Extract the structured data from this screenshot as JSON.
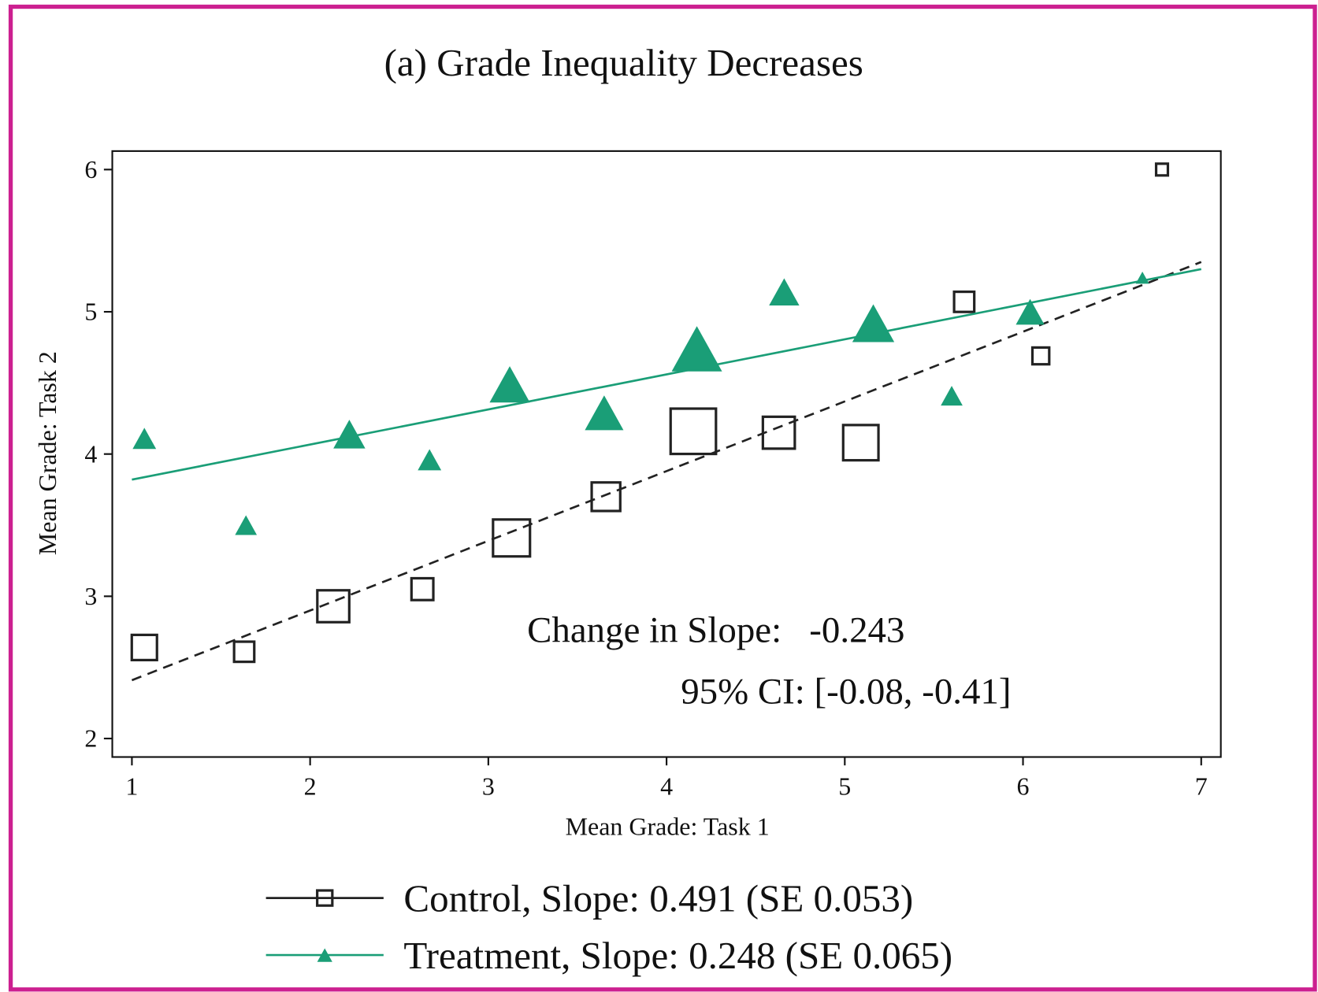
{
  "chart_data": {
    "type": "scatter",
    "title": "(a) Grade Inequality Decreases",
    "xlabel": "Mean Grade: Task 1",
    "ylabel": "Mean Grade: Task 2",
    "xlim": [
      0.89,
      7.11
    ],
    "ylim": [
      1.87,
      6.13
    ],
    "xticks": [
      1,
      2,
      3,
      4,
      5,
      6,
      7
    ],
    "yticks": [
      2,
      3,
      4,
      5,
      6
    ],
    "annotations": [
      "Change in Slope:   -0.243",
      "95% CI: [-0.08, -0.41]"
    ],
    "series": [
      {
        "name": "Control, Slope: 0.491 (SE 0.053)",
        "color": "#222222",
        "marker": "square",
        "x": [
          1.07,
          1.63,
          2.13,
          2.63,
          3.13,
          3.66,
          4.15,
          4.63,
          5.09,
          5.67,
          6.1,
          6.78
        ],
        "values": [
          2.64,
          2.61,
          2.93,
          3.05,
          3.41,
          3.7,
          4.16,
          4.15,
          4.08,
          5.07,
          4.69,
          6.0
        ],
        "sizes": [
          30,
          24,
          38,
          26,
          44,
          34,
          54,
          38,
          42,
          24,
          20,
          14
        ],
        "fit": {
          "x": [
            1,
            7
          ],
          "y": [
            2.41,
            5.35
          ]
        }
      },
      {
        "name": "Treatment, Slope: 0.248 (SE 0.065)",
        "color": "#1a9e77",
        "marker": "triangle",
        "x": [
          1.07,
          1.64,
          2.22,
          2.67,
          3.12,
          3.65,
          4.17,
          4.66,
          5.16,
          5.6,
          6.04,
          6.67
        ],
        "values": [
          4.11,
          3.5,
          4.14,
          3.96,
          4.49,
          4.29,
          4.74,
          5.14,
          4.92,
          4.41,
          5.0,
          5.24
        ],
        "sizes": [
          28,
          26,
          38,
          28,
          48,
          46,
          60,
          36,
          50,
          26,
          34,
          16
        ],
        "fit": {
          "x": [
            1,
            7
          ],
          "y": [
            3.82,
            5.3
          ]
        }
      }
    ]
  }
}
